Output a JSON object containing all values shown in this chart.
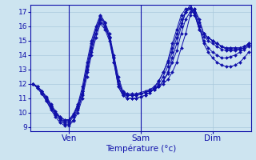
{
  "title": "Température (°c)",
  "ylabel_ticks": [
    9,
    10,
    11,
    12,
    13,
    14,
    15,
    16,
    17
  ],
  "ylim": [
    8.7,
    17.5
  ],
  "xlim": [
    -0.5,
    48.5
  ],
  "xtick_positions": [
    8,
    24,
    40
  ],
  "xtick_labels": [
    "Ven",
    "Sam",
    "Dim"
  ],
  "bg_color": "#cde4f0",
  "grid_color": "#aac8dc",
  "line_color": "#1010aa",
  "series": [
    [
      12.0,
      11.8,
      11.5,
      11.1,
      10.6,
      10.1,
      9.7,
      9.5,
      9.5,
      9.8,
      10.5,
      11.5,
      13.0,
      14.5,
      15.5,
      16.5,
      16.3,
      15.5,
      14.0,
      12.5,
      11.5,
      11.3,
      11.3,
      11.3,
      11.4,
      11.5,
      11.6,
      11.7,
      11.8,
      12.0,
      12.3,
      12.8,
      13.5,
      14.5,
      15.5,
      16.8,
      17.2,
      16.5,
      15.5,
      15.2,
      15.0,
      14.8,
      14.6,
      14.5,
      14.5,
      14.5,
      14.5,
      14.6,
      14.8
    ],
    [
      12.0,
      11.8,
      11.5,
      11.0,
      10.5,
      10.0,
      9.6,
      9.3,
      9.3,
      9.7,
      10.3,
      11.3,
      13.0,
      14.5,
      15.8,
      16.5,
      16.0,
      15.2,
      13.8,
      12.2,
      11.4,
      11.2,
      11.2,
      11.2,
      11.3,
      11.4,
      11.5,
      11.6,
      11.8,
      12.2,
      12.7,
      13.5,
      14.3,
      15.5,
      16.5,
      17.0,
      17.2,
      16.3,
      15.5,
      15.2,
      15.0,
      14.8,
      14.6,
      14.4,
      14.4,
      14.4,
      14.4,
      14.5,
      14.7
    ],
    [
      12.0,
      11.7,
      11.3,
      10.8,
      10.3,
      9.8,
      9.5,
      9.2,
      9.2,
      9.5,
      10.2,
      11.2,
      12.8,
      14.2,
      15.5,
      16.3,
      16.0,
      15.2,
      13.8,
      12.0,
      11.3,
      11.2,
      11.2,
      11.2,
      11.3,
      11.4,
      11.5,
      11.6,
      11.8,
      12.2,
      12.8,
      13.8,
      14.8,
      16.0,
      17.0,
      17.3,
      17.0,
      16.0,
      15.0,
      14.5,
      14.2,
      14.0,
      13.8,
      13.8,
      13.9,
      14.0,
      14.2,
      14.4,
      14.6
    ],
    [
      12.0,
      11.7,
      11.3,
      10.8,
      10.2,
      9.7,
      9.3,
      9.1,
      9.1,
      9.4,
      10.0,
      11.0,
      12.5,
      14.0,
      15.2,
      16.2,
      15.8,
      15.0,
      13.5,
      11.8,
      11.2,
      11.0,
      11.0,
      11.0,
      11.1,
      11.2,
      11.4,
      11.6,
      12.0,
      12.5,
      13.2,
      14.2,
      15.2,
      16.2,
      17.0,
      17.5,
      17.0,
      16.0,
      14.8,
      14.2,
      13.8,
      13.5,
      13.3,
      13.2,
      13.2,
      13.3,
      13.5,
      13.8,
      14.2
    ],
    [
      12.0,
      11.8,
      11.4,
      10.9,
      10.4,
      9.9,
      9.6,
      9.4,
      9.4,
      9.8,
      10.5,
      11.5,
      13.2,
      14.8,
      15.8,
      16.7,
      16.2,
      15.3,
      13.8,
      12.2,
      11.4,
      11.2,
      11.2,
      11.2,
      11.3,
      11.4,
      11.6,
      11.8,
      12.2,
      12.8,
      13.5,
      14.5,
      15.5,
      16.5,
      17.0,
      17.2,
      16.8,
      15.8,
      15.3,
      15.0,
      14.8,
      14.6,
      14.4,
      14.3,
      14.3,
      14.3,
      14.4,
      14.5,
      14.7
    ],
    [
      12.0,
      11.8,
      11.5,
      11.0,
      10.5,
      10.0,
      9.7,
      9.5,
      9.5,
      9.9,
      10.6,
      11.8,
      13.5,
      15.0,
      16.0,
      16.8,
      16.3,
      15.2,
      13.5,
      11.8,
      11.2,
      11.0,
      11.0,
      11.0,
      11.1,
      11.2,
      11.4,
      11.7,
      12.2,
      12.8,
      13.6,
      14.8,
      15.8,
      16.8,
      17.2,
      17.3,
      16.8,
      15.8,
      15.5,
      15.2,
      15.0,
      14.8,
      14.6,
      14.5,
      14.5,
      14.5,
      14.5,
      14.6,
      14.8
    ]
  ],
  "vline_positions": [
    8,
    24
  ],
  "figsize": [
    3.2,
    2.0
  ],
  "dpi": 100
}
